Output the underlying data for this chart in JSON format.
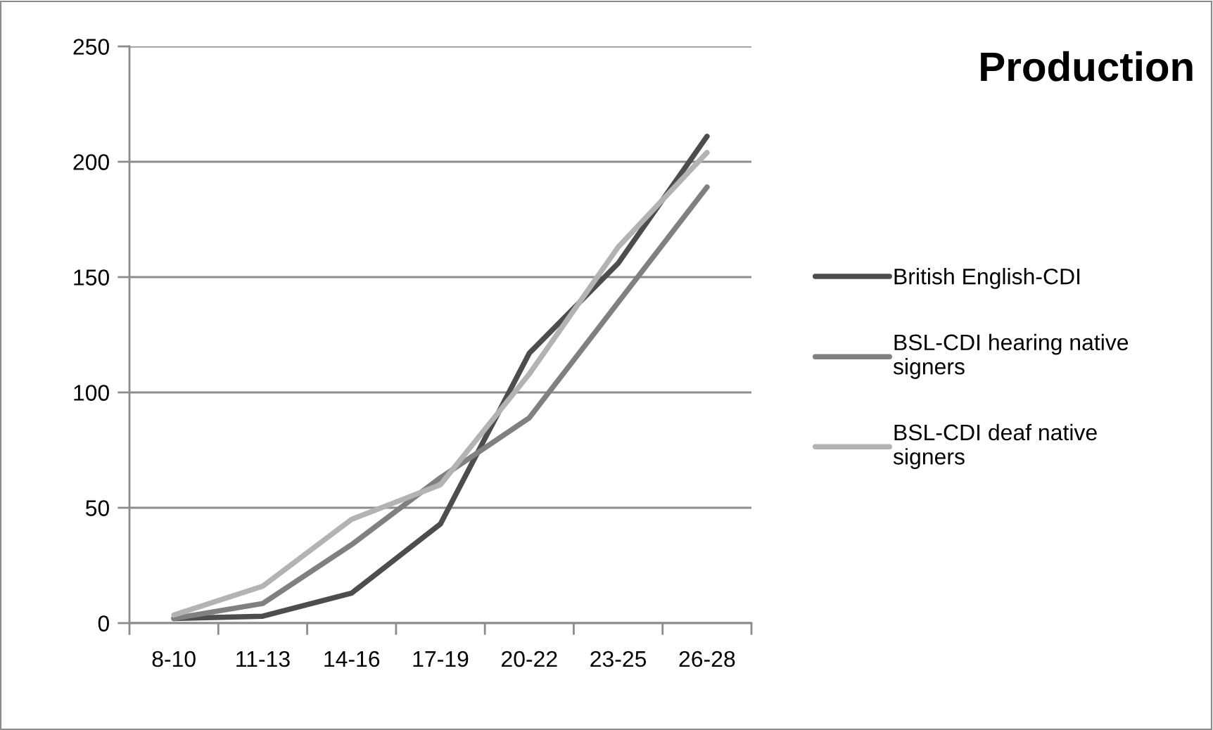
{
  "chart_data": {
    "type": "line",
    "title": "Production",
    "categories": [
      "8-10",
      "11-13",
      "14-16",
      "17-19",
      "20-22",
      "23-25",
      "26-28"
    ],
    "series": [
      {
        "name": "British English-CDI",
        "color": "#4d4d4d",
        "values": [
          2,
          3,
          13,
          43,
          117,
          156,
          211
        ]
      },
      {
        "name": "BSL-CDI hearing native signers",
        "color": "#808080",
        "values": [
          2,
          8.5,
          34,
          63,
          89,
          139,
          189
        ]
      },
      {
        "name": "BSL-CDI deaf native signers",
        "color": "#b3b3b3",
        "values": [
          3.5,
          16,
          45,
          60,
          108,
          163,
          204
        ]
      }
    ],
    "ylim": [
      0,
      250
    ],
    "yticks": [
      0,
      50,
      100,
      150,
      200,
      250
    ],
    "grid": "y",
    "legend": "right",
    "marker": "none",
    "line_style": "solid"
  }
}
